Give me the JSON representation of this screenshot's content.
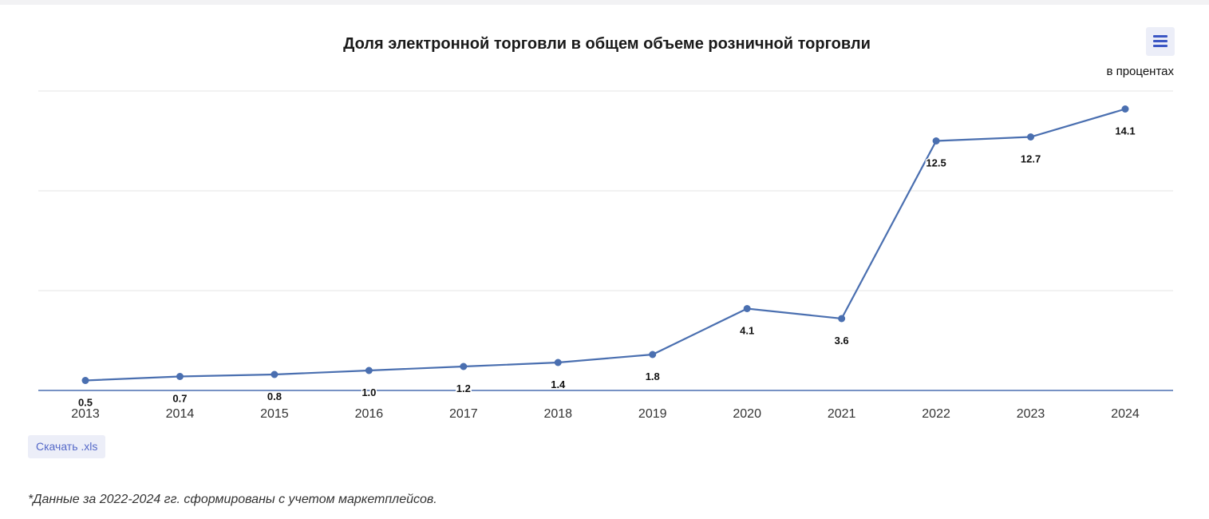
{
  "title": "Доля электронной торговли в общем объеме розничной торговли",
  "unit_label": "в процентах",
  "menu_icon": "hamburger-menu-icon",
  "download_label": "Скачать .xls",
  "footnote": "*Данные за 2022-2024 гг. сформированы с учетом маркетплейсов.",
  "colors": {
    "line": "#4a6fb0",
    "grid": "#e6e6e6",
    "axis": "#4a6fb0"
  },
  "chart_data": {
    "type": "line",
    "title": "Доля электронной торговли в общем объеме розничной торговли",
    "ylabel": "в процентах",
    "xlabel": "",
    "categories": [
      "2013",
      "2014",
      "2015",
      "2016",
      "2017",
      "2018",
      "2019",
      "2020",
      "2021",
      "2022",
      "2023",
      "2024"
    ],
    "values": [
      0.5,
      0.7,
      0.8,
      1.0,
      1.2,
      1.4,
      1.8,
      4.1,
      3.6,
      12.5,
      12.7,
      14.1
    ],
    "data_labels": [
      "0.5",
      "0.7",
      "0.8",
      "1.0",
      "1.2",
      "1.4",
      "1.8",
      "4.1",
      "3.6",
      "12.5",
      "12.7",
      "14.1"
    ],
    "ylim": [
      0,
      15
    ],
    "y_gridlines": [
      5,
      10,
      15
    ],
    "grid": true,
    "legend": "none"
  }
}
